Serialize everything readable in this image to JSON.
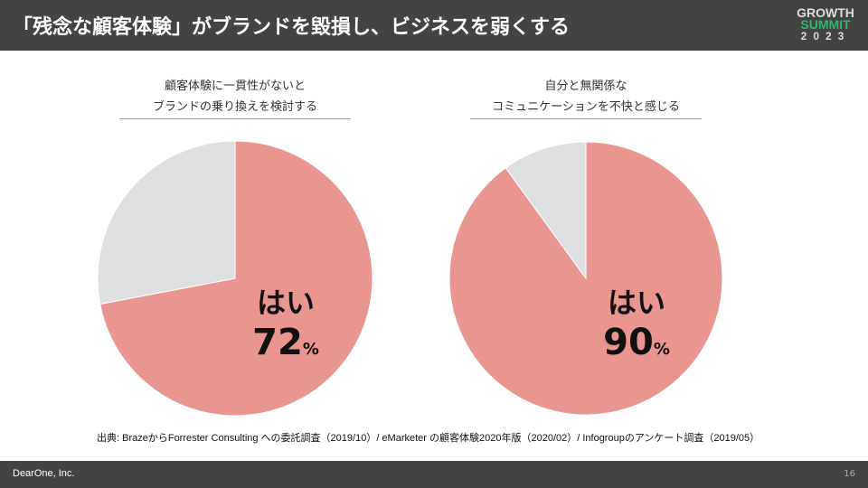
{
  "header": {
    "title": "「残念な顧客体験」がブランドを毀損し、ビジネスを弱くする",
    "logo": {
      "line1": "GROWTH",
      "line2": "SUMMIT",
      "line3": "2023"
    }
  },
  "charts": [
    {
      "question_line1": "顧客体験に一貫性がないと",
      "question_line2": "ブランドの乗り換えを検討する",
      "label": "はい",
      "value": "72",
      "unit": "%"
    },
    {
      "question_line1": "自分と無関係な",
      "question_line2": "コミュニケーションを不快と感じる",
      "label": "はい",
      "value": "90",
      "unit": "%"
    }
  ],
  "chart_data": [
    {
      "type": "pie",
      "slices": [
        {
          "label": "はい",
          "value": 72,
          "color": "#e8968f"
        },
        {
          "value": 28,
          "color": "#dedfe1"
        }
      ]
    },
    {
      "type": "pie",
      "slices": [
        {
          "label": "はい",
          "value": 90,
          "color": "#e8968f"
        },
        {
          "value": 10,
          "color": "#dedfe1"
        }
      ]
    }
  ],
  "source": "出典: BrazeからForrester Consulting への委託調査（2019/10）/ eMarketer の顧客体験2020年版（2020/02）/ Infogroupのアンケート調査（2019/05）",
  "footer": {
    "company": "DearOne, Inc.",
    "page": "16"
  }
}
